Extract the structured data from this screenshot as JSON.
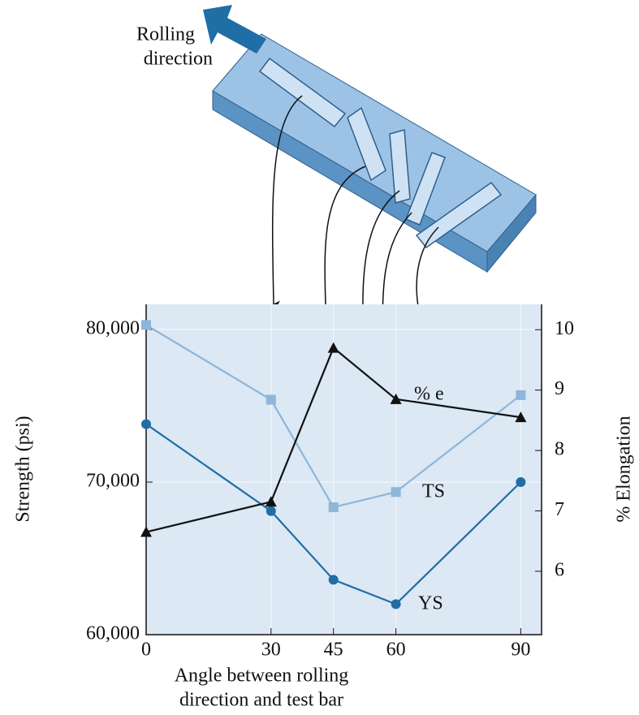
{
  "chart_data": {
    "type": "line",
    "diagram_label": [
      "Rolling",
      "direction"
    ],
    "xlabel": [
      "Angle between rolling",
      "direction and test bar"
    ],
    "ylabel": "Strength (psi)",
    "y2label": "% Elongation",
    "x": [
      0,
      30,
      45,
      60,
      90
    ],
    "xlim": [
      0,
      95
    ],
    "xticks": [
      0,
      30,
      45,
      60,
      90
    ],
    "ylim": [
      60000,
      81650
    ],
    "yticks": [
      {
        "value": 60000,
        "label": "60,000"
      },
      {
        "value": 70000,
        "label": "70,000"
      },
      {
        "value": 80000,
        "label": "80,000"
      }
    ],
    "y2lim": [
      4.95,
      10.42
    ],
    "y2ticks": [
      6,
      7,
      8,
      9,
      10
    ],
    "grid": true,
    "series": [
      {
        "name": "TS",
        "color": "#8db6da",
        "marker": "square",
        "values": [
          80300,
          75400,
          68350,
          69350,
          75700
        ]
      },
      {
        "name": "YS",
        "color": "#1f6ea6",
        "marker": "circle",
        "values": [
          73800,
          68100,
          63600,
          62000,
          70000
        ]
      },
      {
        "name": "% e",
        "color": "#111111",
        "marker": "triangle",
        "axis": "y2",
        "values": [
          6.65,
          7.15,
          9.7,
          8.85,
          8.55
        ]
      }
    ]
  }
}
